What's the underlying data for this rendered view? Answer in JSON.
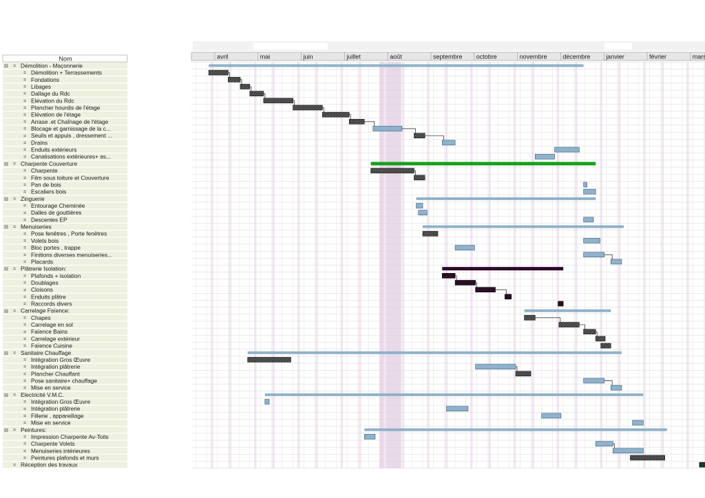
{
  "chart_data": {
    "type": "gantt",
    "column_title": "Nom",
    "months": [
      "avril",
      "mai",
      "juin",
      "juillet",
      "août",
      "septembre",
      "octobre",
      "novembre",
      "décembre",
      "janvier",
      "février",
      "mars"
    ],
    "colors": {
      "summary": "#8fb2c8",
      "task_blue": "#8fb2cc",
      "task_hatched": "#3a3a3a",
      "task_dark": "#2a0f25",
      "critical_summary": "#16a01c",
      "purple_summary": "#2e0a2a",
      "holiday_band": "#ead9ea",
      "label_row_bg": "#eef0e0",
      "link_line": "#1a1a1a",
      "final_task": "#17382a"
    },
    "tasks": [
      {
        "name": "Démolition - Maçonnerie",
        "level": 0,
        "summary": true,
        "start": 0.05,
        "end": 8.72,
        "style": "summary"
      },
      {
        "name": "Démolition + Terrassements",
        "level": 1,
        "start": 0.05,
        "end": 0.5,
        "style": "hatched"
      },
      {
        "name": "Fondations",
        "level": 1,
        "start": 0.5,
        "end": 0.78,
        "style": "hatched"
      },
      {
        "name": "Libages",
        "level": 1,
        "start": 0.78,
        "end": 1.0,
        "style": "hatched"
      },
      {
        "name": "Dallage du Rdc",
        "level": 1,
        "start": 1.0,
        "end": 1.32,
        "style": "hatched"
      },
      {
        "name": "Elévation du Rdc",
        "level": 1,
        "start": 1.32,
        "end": 2.0,
        "style": "hatched"
      },
      {
        "name": "Plancher hourdis de l'étage",
        "level": 1,
        "start": 2.0,
        "end": 2.68,
        "style": "hatched"
      },
      {
        "name": "Elévation de l'étage",
        "level": 1,
        "start": 2.68,
        "end": 3.3,
        "style": "hatched"
      },
      {
        "name": "Arrase .et Chaînage de l'étage",
        "level": 1,
        "start": 3.3,
        "end": 3.65,
        "style": "hatched"
      },
      {
        "name": "Blocage et garnissage de la c...",
        "level": 1,
        "start": 3.85,
        "end": 4.52,
        "style": "blue"
      },
      {
        "name": "Seuils et appuis , dressement ...",
        "level": 1,
        "start": 4.8,
        "end": 5.05,
        "style": "hatched"
      },
      {
        "name": "Drains",
        "level": 1,
        "start": 5.45,
        "end": 5.75,
        "style": "blue"
      },
      {
        "name": "Enduits extérieurs",
        "level": 1,
        "start": 8.05,
        "end": 8.62,
        "style": "blue"
      },
      {
        "name": "Canalisations extérieures+ as...",
        "level": 1,
        "start": 7.6,
        "end": 8.05,
        "style": "blue"
      },
      {
        "name": "Charpente Couverture",
        "level": 0,
        "summary": true,
        "start": 3.8,
        "end": 9.0,
        "style": "critical"
      },
      {
        "name": "Charpente",
        "level": 1,
        "start": 3.8,
        "end": 4.8,
        "style": "hatched"
      },
      {
        "name": "Film sous toiture et Couverture",
        "level": 1,
        "start": 4.8,
        "end": 5.05,
        "style": "hatched"
      },
      {
        "name": "Pan de bois",
        "level": 1,
        "start": 8.72,
        "end": 8.8,
        "style": "blue"
      },
      {
        "name": "Escaliers bois",
        "level": 1,
        "start": 8.72,
        "end": 9.0,
        "style": "blue"
      },
      {
        "name": "Zinguerie",
        "level": 0,
        "summary": true,
        "start": 4.85,
        "end": 9.0,
        "style": "summary"
      },
      {
        "name": "Entourage Cheminée",
        "level": 1,
        "start": 4.85,
        "end": 5.0,
        "style": "blue"
      },
      {
        "name": "Dalles de gouttières",
        "level": 1,
        "start": 4.9,
        "end": 5.1,
        "style": "blue"
      },
      {
        "name": "Descentes EP",
        "level": 1,
        "start": 8.72,
        "end": 8.95,
        "style": "blue"
      },
      {
        "name": "Menuiseries",
        "level": 0,
        "summary": true,
        "start": 5.0,
        "end": 9.65,
        "style": "summary"
      },
      {
        "name": "Pose fenêtres , Porte fenêtres",
        "level": 1,
        "start": 5.0,
        "end": 5.35,
        "style": "hatched"
      },
      {
        "name": "Volets bois",
        "level": 1,
        "start": 8.72,
        "end": 9.1,
        "style": "blue"
      },
      {
        "name": "Bloc portes , trappe",
        "level": 1,
        "start": 5.75,
        "end": 6.2,
        "style": "blue"
      },
      {
        "name": "Finitions diverses menuiseries...",
        "level": 1,
        "start": 8.72,
        "end": 9.2,
        "style": "blue"
      },
      {
        "name": "Placards",
        "level": 1,
        "start": 9.35,
        "end": 9.6,
        "style": "blue"
      },
      {
        "name": "Plâtrerie Isolation:",
        "level": 0,
        "summary": true,
        "start": 5.45,
        "end": 8.25,
        "style": "purple"
      },
      {
        "name": "Plafonds + isolation",
        "level": 1,
        "start": 5.45,
        "end": 5.75,
        "style": "dark"
      },
      {
        "name": "Doublages",
        "level": 1,
        "start": 5.75,
        "end": 6.22,
        "style": "dark"
      },
      {
        "name": "Cloisons",
        "level": 1,
        "start": 6.22,
        "end": 6.68,
        "style": "dark"
      },
      {
        "name": "Enduits plâtre",
        "level": 1,
        "start": 6.9,
        "end": 7.05,
        "style": "dark"
      },
      {
        "name": "Raccords divers",
        "level": 1,
        "start": 8.13,
        "end": 8.25,
        "style": "dark"
      },
      {
        "name": "Carrelage Faïence:",
        "level": 0,
        "summary": true,
        "start": 7.35,
        "end": 9.35,
        "style": "summary"
      },
      {
        "name": "Chapes",
        "level": 1,
        "start": 7.35,
        "end": 7.6,
        "style": "hatched"
      },
      {
        "name": "Carrelage en sol",
        "level": 1,
        "start": 8.15,
        "end": 8.62,
        "style": "hatched"
      },
      {
        "name": "Faïence Bains",
        "level": 1,
        "start": 8.72,
        "end": 9.0,
        "style": "hatched"
      },
      {
        "name": "Carrelage extérieur",
        "level": 1,
        "start": 9.0,
        "end": 9.22,
        "style": "hatched"
      },
      {
        "name": "Faïence Cuisine",
        "level": 1,
        "start": 9.12,
        "end": 9.35,
        "style": "hatched"
      },
      {
        "name": "Sanitaire Chauffage",
        "level": 0,
        "summary": true,
        "start": 0.95,
        "end": 9.6,
        "style": "summary"
      },
      {
        "name": "Intégration Gros Œuvre",
        "level": 1,
        "start": 0.95,
        "end": 1.95,
        "style": "hatched"
      },
      {
        "name": "Intégration plâtrerie",
        "level": 1,
        "start": 6.22,
        "end": 7.15,
        "style": "blue"
      },
      {
        "name": "Plancher Chauffant",
        "level": 1,
        "start": 7.15,
        "end": 7.5,
        "style": "hatched"
      },
      {
        "name": "Pose sanitaire+ chauffage",
        "level": 1,
        "start": 8.72,
        "end": 9.2,
        "style": "blue"
      },
      {
        "name": "Mise en service",
        "level": 1,
        "start": 9.35,
        "end": 9.6,
        "style": "blue"
      },
      {
        "name": "Electricité V.M.C.",
        "level": 0,
        "summary": true,
        "start": 1.35,
        "end": 10.1,
        "style": "summary"
      },
      {
        "name": "Intégration Gros Œuvre",
        "level": 1,
        "start": 1.35,
        "end": 1.45,
        "style": "blue"
      },
      {
        "name": "Intégration plâtrerie",
        "level": 1,
        "start": 5.55,
        "end": 6.05,
        "style": "blue"
      },
      {
        "name": "Fillerie , appareillage",
        "level": 1,
        "start": 7.75,
        "end": 8.2,
        "style": "blue"
      },
      {
        "name": "Mise en service",
        "level": 1,
        "start": 9.85,
        "end": 10.1,
        "style": "blue"
      },
      {
        "name": "Peintures:",
        "level": 0,
        "summary": true,
        "start": 3.65,
        "end": 10.65,
        "style": "summary"
      },
      {
        "name": "Impression Charpente Av-Toits",
        "level": 1,
        "start": 3.65,
        "end": 3.9,
        "style": "blue"
      },
      {
        "name": "Charpente Volets",
        "level": 1,
        "start": 9.0,
        "end": 9.4,
        "style": "blue"
      },
      {
        "name": "Menuiseries intérieures",
        "level": 1,
        "start": 9.4,
        "end": 10.1,
        "style": "blue"
      },
      {
        "name": "Peintures plafonds et murs",
        "level": 1,
        "start": 9.8,
        "end": 10.6,
        "style": "hatched"
      },
      {
        "name": "Réception des travaux",
        "level": 0,
        "summary": false,
        "start": 11.4,
        "end": 11.62,
        "style": "final"
      }
    ]
  }
}
